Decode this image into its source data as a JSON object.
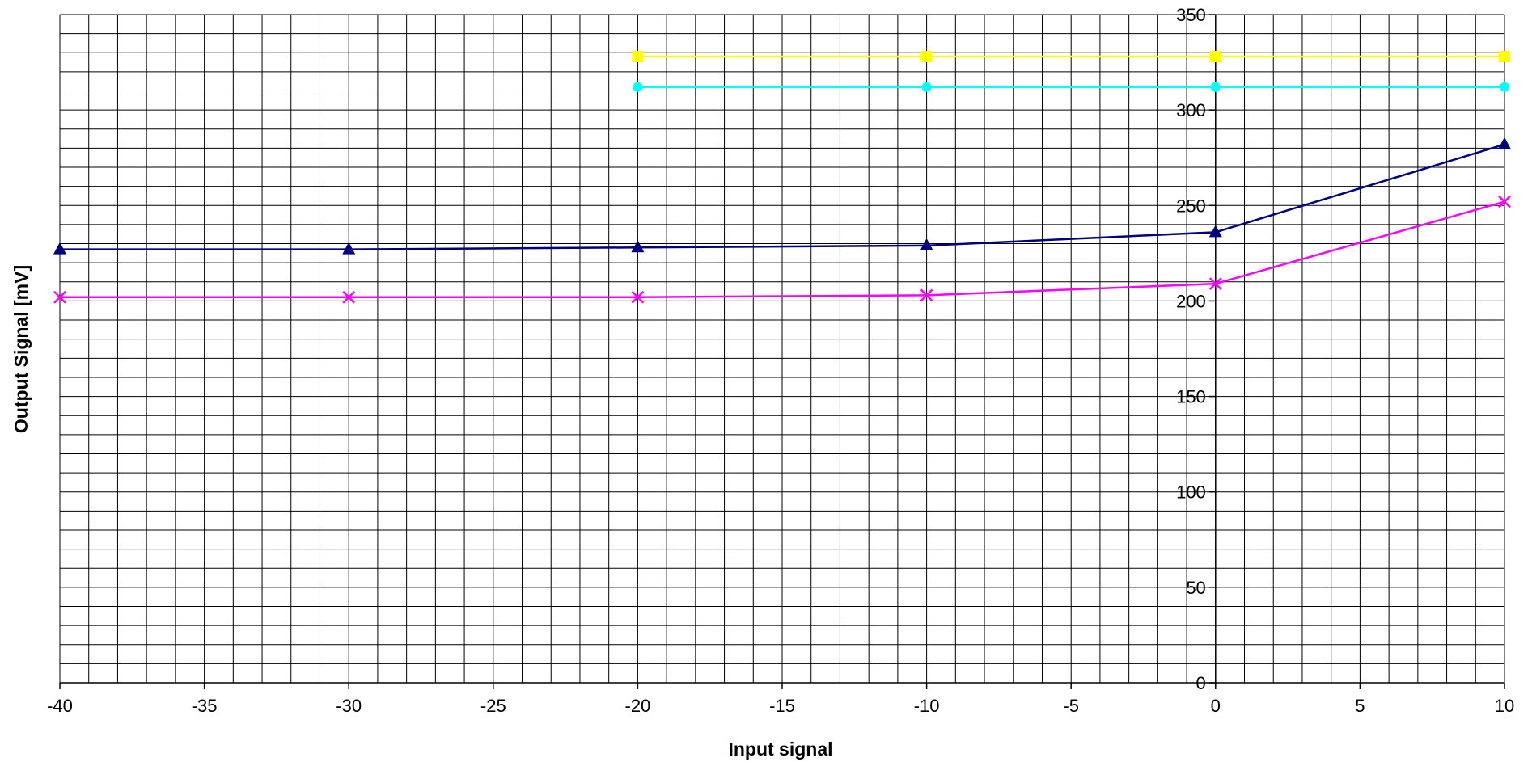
{
  "chart_data": {
    "type": "line",
    "xlabel": "Input signal",
    "ylabel": "Output Signal [mV]",
    "xlim": [
      -40,
      10
    ],
    "ylim": [
      0,
      350
    ],
    "x_ticks": [
      -40,
      -35,
      -30,
      -25,
      -20,
      -15,
      -10,
      -5,
      0,
      5,
      10
    ],
    "y_ticks": [
      0,
      50,
      100,
      150,
      200,
      250,
      300,
      350
    ],
    "grid": true,
    "legend": "none",
    "series": [
      {
        "color": "#ffff00",
        "marker": "square",
        "x": [
          -20,
          -10,
          0,
          10
        ],
        "y": [
          328,
          328,
          328,
          328
        ]
      },
      {
        "color": "#00ffff",
        "marker": "circle",
        "x": [
          -20,
          -10,
          0,
          10
        ],
        "y": [
          312,
          312,
          312,
          312
        ]
      },
      {
        "color": "#000080",
        "marker": "triangle",
        "x": [
          -40,
          -30,
          -20,
          -10,
          0,
          10
        ],
        "y": [
          227,
          227,
          228,
          229,
          236,
          282
        ]
      },
      {
        "color": "#ff00ff",
        "marker": "x",
        "x": [
          -40,
          -30,
          -20,
          -10,
          0,
          10
        ],
        "y": [
          202,
          202,
          202,
          203,
          209,
          252
        ]
      }
    ]
  }
}
